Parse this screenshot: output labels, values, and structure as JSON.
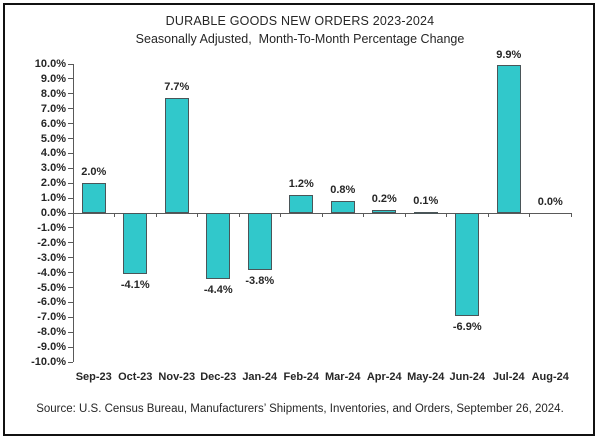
{
  "chart_data": {
    "type": "bar",
    "title": "DURABLE GOODS NEW ORDERS 2023-2024",
    "subtitle": "Seasonally Adjusted,  Month-To-Month Percentage Change",
    "categories": [
      "Sep-23",
      "Oct-23",
      "Nov-23",
      "Dec-23",
      "Jan-24",
      "Feb-24",
      "Mar-24",
      "Apr-24",
      "May-24",
      "Jun-24",
      "Jul-24",
      "Aug-24"
    ],
    "values": [
      2.0,
      -4.1,
      7.7,
      -4.4,
      -3.8,
      1.2,
      0.8,
      0.2,
      0.1,
      -6.9,
      9.9,
      0.0
    ],
    "data_labels": [
      "2.0%",
      "-4.1%",
      "7.7%",
      "-4.4%",
      "-3.8%",
      "1.2%",
      "0.8%",
      "0.2%",
      "0.1%",
      "-6.9%",
      "9.9%",
      "0.0%"
    ],
    "ylim": [
      -10,
      10
    ],
    "ytick_step": 1,
    "ytick_labels": [
      "10.0%",
      "9.0%",
      "8.0%",
      "7.0%",
      "6.0%",
      "5.0%",
      "4.0%",
      "3.0%",
      "2.0%",
      "1.0%",
      "0.0%",
      "-1.0%",
      "-2.0%",
      "-3.0%",
      "-4.0%",
      "-5.0%",
      "-6.0%",
      "-7.0%",
      "-8.0%",
      "-9.0%",
      "-10.0%"
    ],
    "grid": false,
    "legend": "none",
    "bar_color": "#31C8CB",
    "bar_border_color": "#4A5558",
    "axis_color": "#595959",
    "text_color": "#262626",
    "frame_color": "#111111",
    "source": "Source: U.S. Census Bureau, Manufacturers’ Shipments, Inventories, and Orders, September 26, 2024."
  }
}
